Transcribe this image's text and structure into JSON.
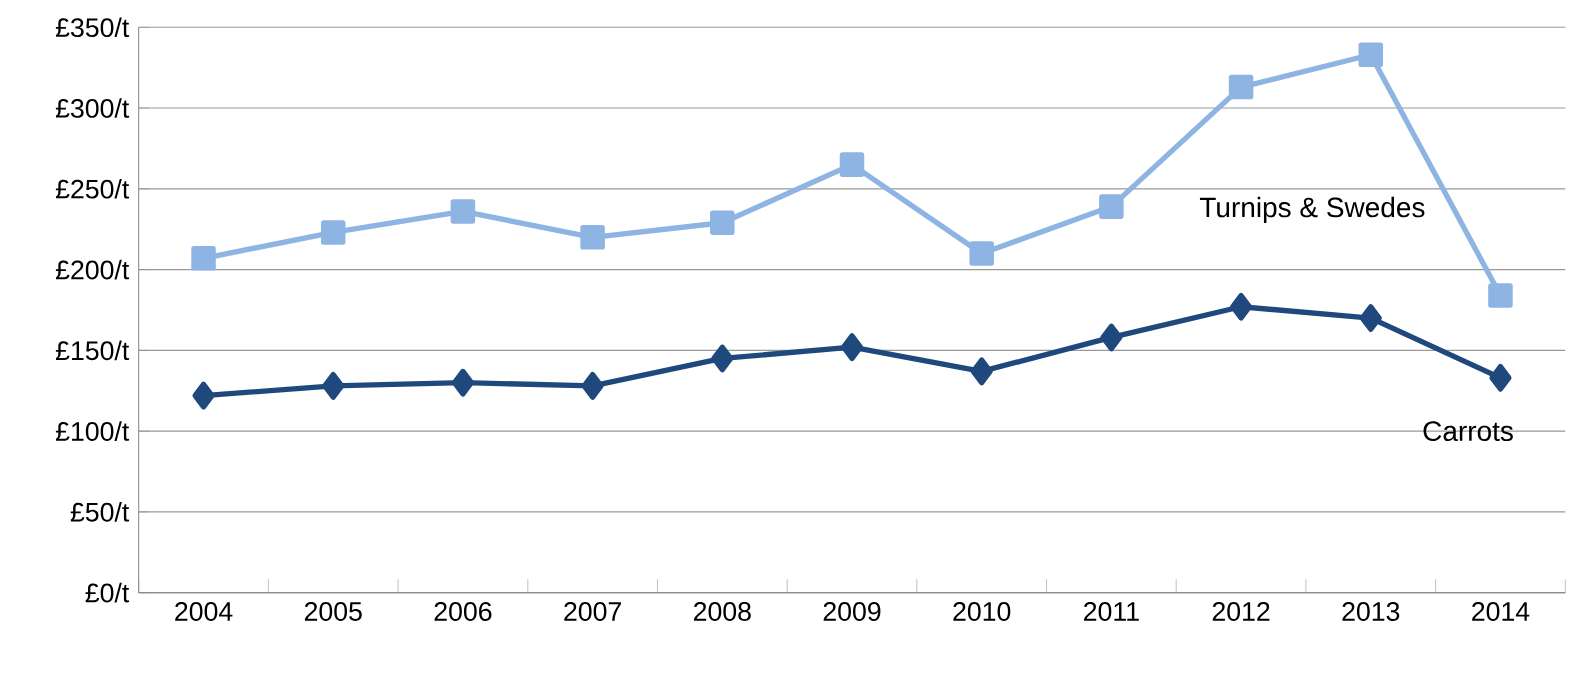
{
  "chart_data": {
    "type": "line",
    "categories": [
      "2004",
      "2005",
      "2006",
      "2007",
      "2008",
      "2009",
      "2010",
      "2011",
      "2012",
      "2013",
      "2014"
    ],
    "series": [
      {
        "name": "Turnips & Swedes",
        "color": "#8db4e2",
        "marker": "square",
        "values": [
          207,
          223,
          236,
          220,
          229,
          265,
          210,
          239,
          313,
          333,
          184
        ]
      },
      {
        "name": "Carrots",
        "color": "#1f497d",
        "marker": "diamond",
        "values": [
          122,
          128,
          130,
          128,
          145,
          152,
          137,
          158,
          177,
          170,
          133
        ]
      }
    ],
    "ylim": [
      0,
      350
    ],
    "yticks": [
      {
        "value": 0,
        "label": "£0/t"
      },
      {
        "value": 50,
        "label": "£50/t"
      },
      {
        "value": 100,
        "label": "£100/t"
      },
      {
        "value": 150,
        "label": "£150/t"
      },
      {
        "value": 200,
        "label": "£200/t"
      },
      {
        "value": 250,
        "label": "£250/t"
      },
      {
        "value": 300,
        "label": "£300/t"
      },
      {
        "value": 350,
        "label": "£350/t"
      }
    ],
    "grid": "y",
    "legend": false,
    "line_style": "solid"
  }
}
